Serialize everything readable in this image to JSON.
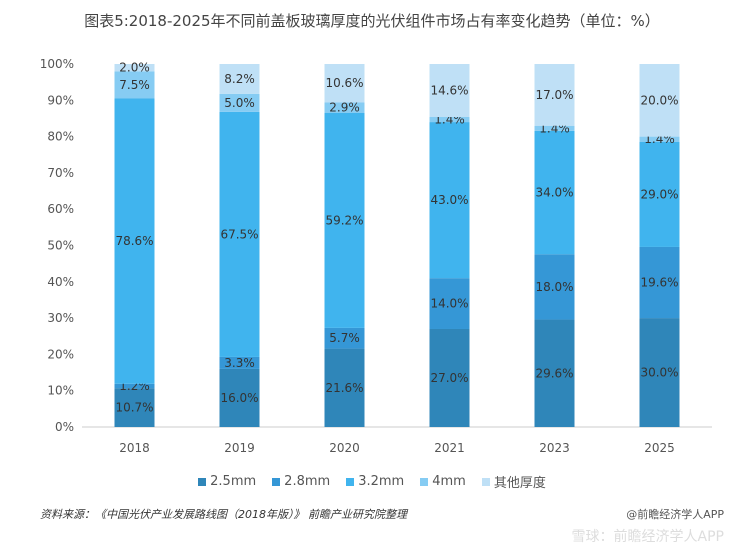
{
  "chart_data": {
    "type": "bar",
    "stacked": true,
    "title": "图表5:2018-2025年不同前盖板玻璃厚度的光伏组件市场占有率变化趋势（单位：%）",
    "categories": [
      "2018",
      "2019",
      "2020",
      "2021",
      "2023",
      "2025"
    ],
    "ylim": [
      0,
      100
    ],
    "yticks": [
      "0%",
      "10%",
      "20%",
      "30%",
      "40%",
      "50%",
      "60%",
      "70%",
      "80%",
      "90%",
      "100%"
    ],
    "legend_position": "bottom",
    "series": [
      {
        "name": "2.5mm",
        "color": "#2f86b9",
        "values": [
          10.7,
          16.0,
          21.6,
          27.0,
          29.6,
          30.0
        ]
      },
      {
        "name": "2.8mm",
        "color": "#3597d6",
        "values": [
          1.2,
          3.3,
          5.7,
          14.0,
          18.0,
          19.6
        ]
      },
      {
        "name": "3.2mm",
        "color": "#40b4ee",
        "values": [
          78.6,
          67.5,
          59.2,
          43.0,
          34.0,
          29.0
        ]
      },
      {
        "name": "4mm",
        "color": "#86ccf3",
        "values": [
          7.5,
          5.0,
          2.9,
          1.4,
          1.4,
          1.4
        ]
      },
      {
        "name": "其他厚度",
        "color": "#bfe0f6",
        "values": [
          2.0,
          8.2,
          10.6,
          14.6,
          17.0,
          20.0
        ]
      }
    ]
  },
  "footer": {
    "source": "资料来源：《中国光伏产业发展路线图（2018年版）》 前瞻产业研究院整理",
    "watermark": "雪球：前瞻经济学人APP",
    "credit": "@前瞻经济学人APP"
  }
}
